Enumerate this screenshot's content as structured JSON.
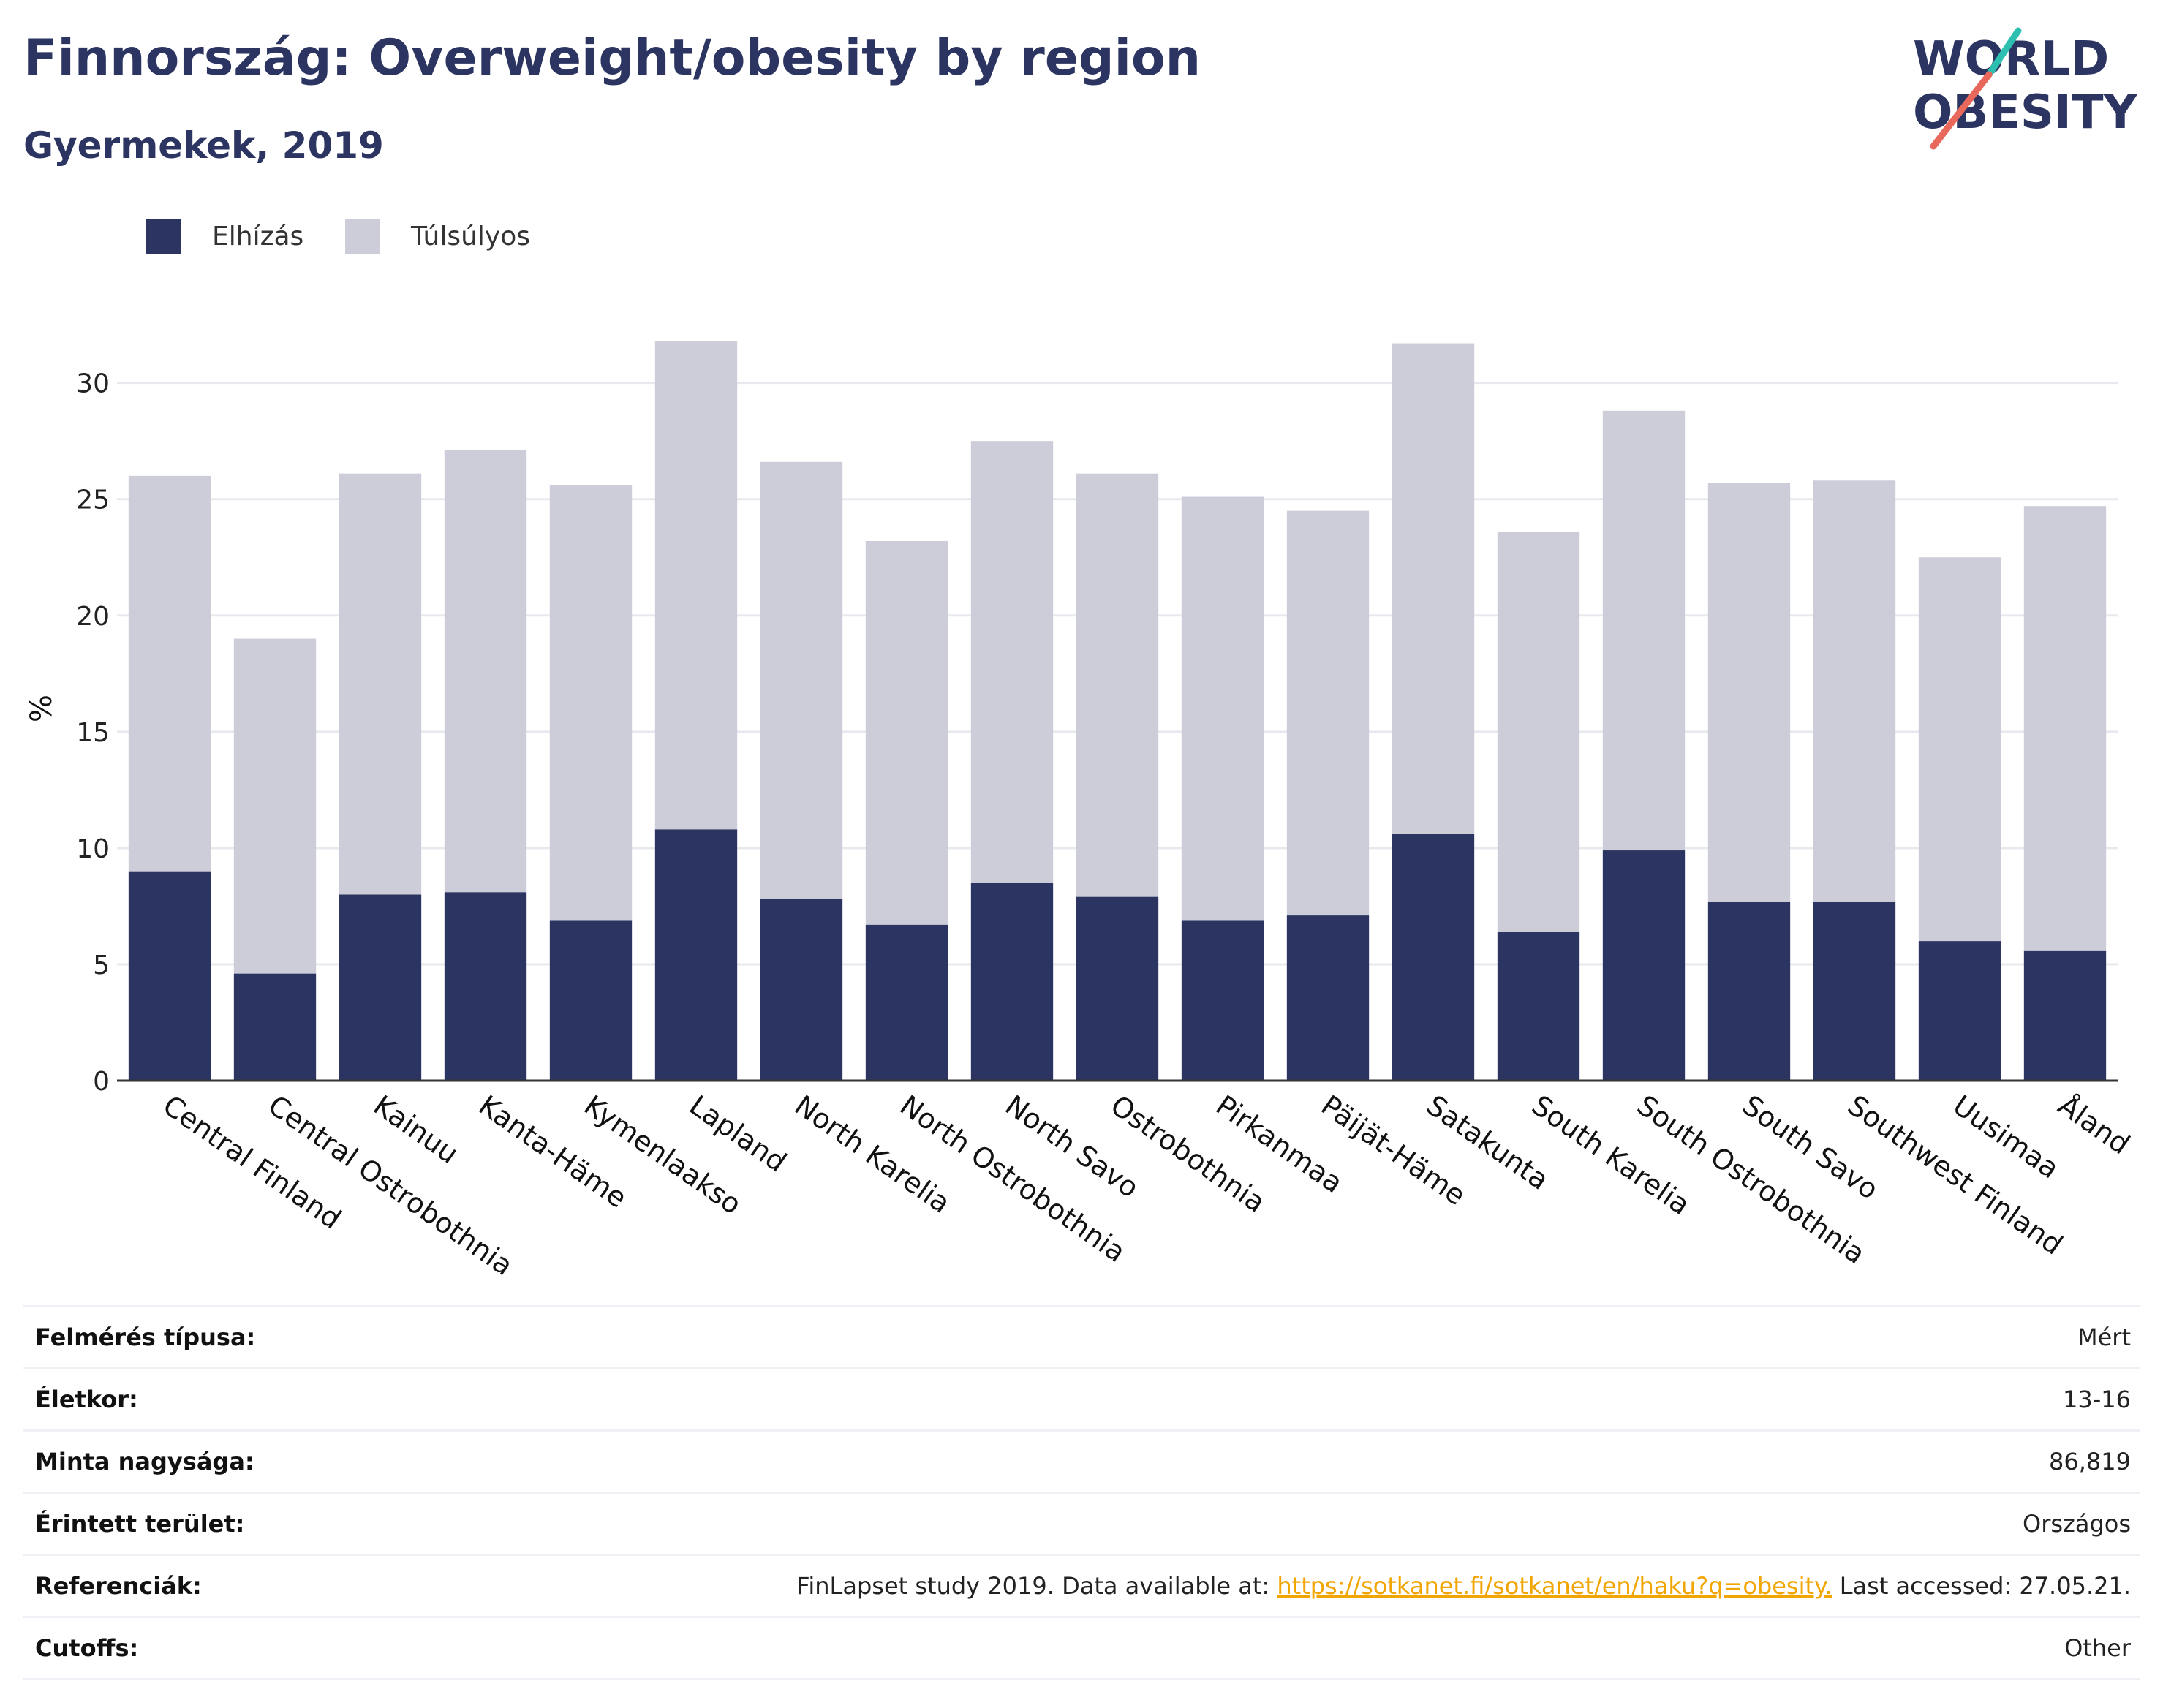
{
  "header": {
    "title": "Finnország: Overweight/obesity by region",
    "subtitle": "Gyermekek, 2019"
  },
  "logo": {
    "line1": "WORLD",
    "line2": "OBESITY",
    "icon": "world-obesity-logo"
  },
  "colors": {
    "obesity": "#2c3561",
    "overweight": "#cccdd8",
    "title": "#2c3561",
    "link": "#f0a500"
  },
  "chart_data": {
    "type": "bar",
    "stacked": true,
    "categories": [
      "Central Finland",
      "Central Ostrobothnia",
      "Kainuu",
      "Kanta-Häme",
      "Kymenlaakso",
      "Lapland",
      "North Karelia",
      "North Ostrobothnia",
      "North Savo",
      "Ostrobothnia",
      "Pirkanmaa",
      "Päijät-Häme",
      "Satakunta",
      "South Karelia",
      "South Ostrobothnia",
      "South Savo",
      "Southwest Finland",
      "Uusimaa",
      "Åland"
    ],
    "series": [
      {
        "name": "Elhízás",
        "values": [
          9.0,
          4.6,
          8.0,
          8.1,
          6.9,
          10.8,
          7.8,
          6.7,
          8.5,
          7.9,
          6.9,
          7.1,
          10.6,
          6.4,
          9.9,
          7.7,
          7.7,
          6.0,
          5.6
        ]
      },
      {
        "name": "Túlsúlyos",
        "values": [
          17.0,
          14.4,
          18.1,
          19.0,
          18.7,
          21.0,
          18.8,
          16.5,
          19.0,
          18.2,
          18.2,
          17.4,
          21.1,
          17.2,
          18.9,
          18.0,
          18.1,
          16.5,
          19.1
        ]
      }
    ],
    "ylabel": "%",
    "ylim": [
      0,
      32
    ],
    "yticks": [
      0,
      5,
      10,
      15,
      20,
      25,
      30
    ],
    "grid": true,
    "legend": "top-left"
  },
  "meta": [
    {
      "label": "Felmérés típusa:",
      "value": "Mért"
    },
    {
      "label": "Életkor:",
      "value": "13-16"
    },
    {
      "label": "Minta nagysága:",
      "value": "86,819"
    },
    {
      "label": "Érintett terület:",
      "value": "Országos"
    },
    {
      "label": "Referenciák:",
      "value_prefix": "FinLapset study 2019. Data available at: ",
      "link": "https://sotkanet.fi/sotkanet/en/haku?q=obesity.",
      "value_suffix": " Last accessed: 27.05.21."
    },
    {
      "label": "Cutoffs:",
      "value": "Other"
    }
  ]
}
